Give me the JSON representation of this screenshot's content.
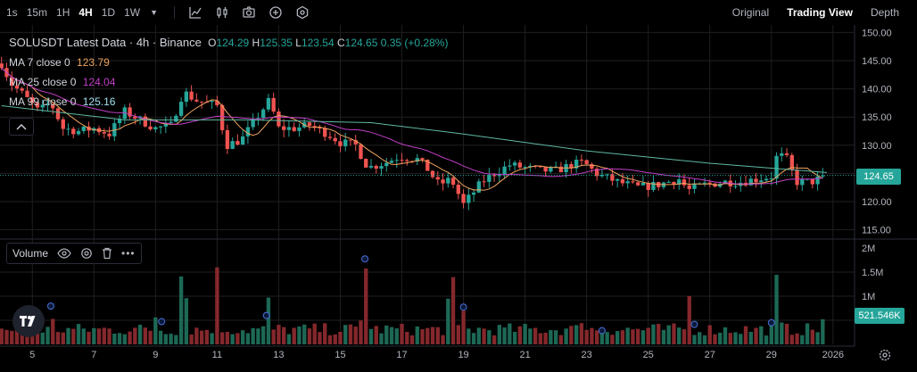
{
  "toolbar": {
    "timeframes": [
      "1s",
      "15m",
      "1H",
      "4H",
      "1D",
      "1W"
    ],
    "active_timeframe": "4H",
    "tools": [
      "indicator-icon",
      "candle-style-icon",
      "camera-icon",
      "add-icon",
      "settings-icon"
    ]
  },
  "view_tabs": [
    {
      "label": "Original",
      "active": false
    },
    {
      "label": "Trading View",
      "active": true
    },
    {
      "label": "Depth",
      "active": false
    }
  ],
  "legend": {
    "title": "SOLUSDT Latest Data · 4h · Binance",
    "open_label": "O",
    "open": "124.29",
    "high_label": "H",
    "high": "125.35",
    "low_label": "L",
    "low": "123.54",
    "close_label": "C",
    "close": "124.65",
    "change": "0.35 (+0.28%)",
    "ma7_label": "MA 7 close 0",
    "ma7_value": "123.79",
    "ma25_label": "MA 25 close 0",
    "ma25_value": "124.04",
    "ma99_label": "MA 99 close 0",
    "ma99_value": "125.16"
  },
  "volume_legend": {
    "label": "Volume"
  },
  "colors": {
    "up": "#26a69a",
    "down": "#ef5350",
    "ma7": "#f0a35e",
    "ma25": "#c13fc7",
    "ma99": "#5fb8a3",
    "background": "#000000",
    "grid": "#1f1f1f"
  },
  "price_axis": {
    "ticks": [
      "150.00",
      "145.00",
      "140.00",
      "135.00",
      "130.00",
      "125.00",
      "120.00",
      "115.00"
    ],
    "last_price": "124.65"
  },
  "volume_axis": {
    "ticks": [
      "2M",
      "1.5M",
      "1M"
    ],
    "last_volume": "521.546K"
  },
  "time_axis": {
    "ticks": [
      "5",
      "7",
      "9",
      "11",
      "13",
      "15",
      "17",
      "19",
      "21",
      "23",
      "25",
      "27",
      "29",
      "2026"
    ]
  },
  "chart_data": {
    "type": "candlestick",
    "symbol": "SOLUSDT",
    "interval": "4h",
    "ylim": [
      114,
      151
    ],
    "volume_ylim": [
      0,
      2000000
    ],
    "anchors": [
      {
        "day": 4.0,
        "price": 144.5
      },
      {
        "day": 4.3,
        "price": 141.0
      },
      {
        "day": 4.7,
        "price": 139.0
      },
      {
        "day": 5.2,
        "price": 136.0
      },
      {
        "day": 5.6,
        "price": 137.5
      },
      {
        "day": 6.0,
        "price": 133.0
      },
      {
        "day": 6.5,
        "price": 132.5
      },
      {
        "day": 7.0,
        "price": 133.0
      },
      {
        "day": 7.5,
        "price": 132.0
      },
      {
        "day": 8.0,
        "price": 136.0
      },
      {
        "day": 8.5,
        "price": 134.5
      },
      {
        "day": 9.0,
        "price": 133.0
      },
      {
        "day": 9.5,
        "price": 133.5
      },
      {
        "day": 9.9,
        "price": 139.5
      },
      {
        "day": 10.3,
        "price": 138.0
      },
      {
        "day": 11.0,
        "price": 137.0
      },
      {
        "day": 11.3,
        "price": 130.0
      },
      {
        "day": 11.8,
        "price": 131.0
      },
      {
        "day": 12.3,
        "price": 135.0
      },
      {
        "day": 12.7,
        "price": 138.0
      },
      {
        "day": 13.0,
        "price": 133.0
      },
      {
        "day": 13.5,
        "price": 133.0
      },
      {
        "day": 14.0,
        "price": 133.5
      },
      {
        "day": 14.6,
        "price": 132.0
      },
      {
        "day": 15.0,
        "price": 130.5
      },
      {
        "day": 15.5,
        "price": 130.0
      },
      {
        "day": 15.9,
        "price": 126.0
      },
      {
        "day": 16.5,
        "price": 127.0
      },
      {
        "day": 16.9,
        "price": 128.0
      },
      {
        "day": 17.5,
        "price": 127.5
      },
      {
        "day": 17.8,
        "price": 126.0
      },
      {
        "day": 18.2,
        "price": 123.0
      },
      {
        "day": 18.6,
        "price": 124.0
      },
      {
        "day": 19.0,
        "price": 119.5
      },
      {
        "day": 19.3,
        "price": 121.5
      },
      {
        "day": 19.6,
        "price": 123.5
      },
      {
        "day": 20.0,
        "price": 125.0
      },
      {
        "day": 20.5,
        "price": 126.5
      },
      {
        "day": 21.0,
        "price": 126.0
      },
      {
        "day": 21.5,
        "price": 125.5
      },
      {
        "day": 22.0,
        "price": 125.5
      },
      {
        "day": 22.5,
        "price": 126.5
      },
      {
        "day": 22.9,
        "price": 127.0
      },
      {
        "day": 23.3,
        "price": 125.0
      },
      {
        "day": 24.0,
        "price": 123.5
      },
      {
        "day": 24.7,
        "price": 122.5
      },
      {
        "day": 25.3,
        "price": 123.0
      },
      {
        "day": 26.0,
        "price": 124.0
      },
      {
        "day": 26.3,
        "price": 122.0
      },
      {
        "day": 26.8,
        "price": 123.0
      },
      {
        "day": 27.5,
        "price": 123.5
      },
      {
        "day": 28.0,
        "price": 123.5
      },
      {
        "day": 28.5,
        "price": 124.0
      },
      {
        "day": 29.0,
        "price": 124.5
      },
      {
        "day": 29.2,
        "price": 128.5
      },
      {
        "day": 29.5,
        "price": 127.5
      },
      {
        "day": 29.8,
        "price": 123.5
      },
      {
        "day": 30.3,
        "price": 123.5
      },
      {
        "day": 30.8,
        "price": 124.65
      }
    ],
    "ma99_anchors": [
      {
        "day": 4.0,
        "price": 137.0
      },
      {
        "day": 8.0,
        "price": 134.5
      },
      {
        "day": 12.0,
        "price": 134.5
      },
      {
        "day": 16.0,
        "price": 134.0
      },
      {
        "day": 19.0,
        "price": 132.0
      },
      {
        "day": 23.0,
        "price": 129.0
      },
      {
        "day": 27.0,
        "price": 126.8
      },
      {
        "day": 30.8,
        "price": 125.16
      }
    ],
    "volume_peaks": [
      {
        "day": 5.6,
        "volume": 720000
      },
      {
        "day": 9.0,
        "volume": 560000
      },
      {
        "day": 9.9,
        "volume": 1920000
      },
      {
        "day": 11.0,
        "volume": 1600000
      },
      {
        "day": 12.7,
        "volume": 1050000
      },
      {
        "day": 15.8,
        "volume": 1700000
      },
      {
        "day": 18.6,
        "volume": 1900000
      },
      {
        "day": 19.0,
        "volume": 700000
      },
      {
        "day": 22.9,
        "volume": 600000
      },
      {
        "day": 26.3,
        "volume": 1080000
      },
      {
        "day": 29.2,
        "volume": 1560000
      },
      {
        "day": 30.8,
        "volume": 521546
      }
    ],
    "day_range": [
      3.95,
      31.7
    ],
    "highlight_markers_days": [
      5.6,
      9.2,
      12.6,
      15.8,
      19.0,
      23.5,
      26.5,
      29.0
    ]
  }
}
